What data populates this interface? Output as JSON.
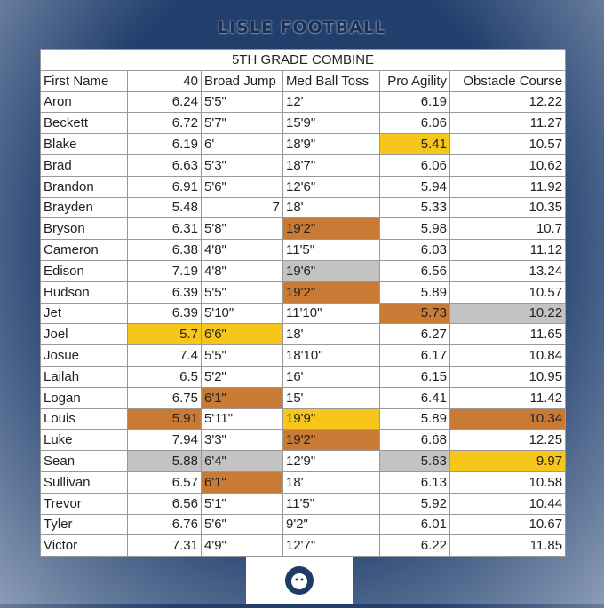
{
  "header": {
    "title": "LISLE FOOTBALL"
  },
  "table": {
    "title": "5TH GRADE COMBINE",
    "columns": [
      "First Name",
      "40",
      "Broad Jump",
      "Med Ball Toss",
      "Pro Agility",
      "Obstacle Course"
    ],
    "rows": [
      [
        "Aron",
        "6.24",
        "5'5\"",
        "12'",
        "6.19",
        "12.22"
      ],
      [
        "Beckett",
        "6.72",
        "5'7\"",
        "15'9\"",
        "6.06",
        "11.27"
      ],
      [
        "Blake",
        "6.19",
        "6'",
        "18'9\"",
        {
          "text": "5.41",
          "color": "#f7c61b"
        },
        "10.57"
      ],
      [
        "Brad",
        "6.63",
        "5'3\"",
        "18'7\"",
        "6.06",
        "10.62"
      ],
      [
        "Brandon",
        "6.91",
        "5'6\"",
        "12'6\"",
        "5.94",
        "11.92"
      ],
      [
        "Brayden",
        "5.48",
        "7",
        "18'",
        "5.33",
        "10.35"
      ],
      [
        "Bryson",
        "6.31",
        "5'8\"",
        {
          "text": "19'2\"",
          "color": "#c97a34"
        },
        "5.98",
        "10.7"
      ],
      [
        "Cameron",
        "6.38",
        "4'8\"",
        "11'5\"",
        "6.03",
        "11.12"
      ],
      [
        "Edison",
        "7.19",
        "4'8\"",
        {
          "text": "19'6\"",
          "color": "#c3c3c3"
        },
        "6.56",
        "13.24"
      ],
      [
        "Hudson",
        "6.39",
        "5'5\"",
        {
          "text": "19'2\"",
          "color": "#c97a34"
        },
        "5.89",
        "10.57"
      ],
      [
        "Jet",
        "6.39",
        "5'10\"",
        "11'10\"",
        {
          "text": "5.73",
          "color": "#c97a34"
        },
        {
          "text": "10.22",
          "color": "#c3c3c3"
        }
      ],
      [
        "Joel",
        {
          "text": "5.7",
          "color": "#f7c61b"
        },
        {
          "text": "6'6\"",
          "color": "#f7c61b"
        },
        "18'",
        "6.27",
        "11.65"
      ],
      [
        "Josue",
        "7.4",
        "5'5\"",
        "18'10\"",
        "6.17",
        "10.84"
      ],
      [
        "Lailah",
        "6.5",
        "5'2\"",
        "16'",
        "6.15",
        "10.95"
      ],
      [
        "Logan",
        "6.75",
        {
          "text": "6'1\"",
          "color": "#c97a34"
        },
        "15'",
        "6.41",
        "11.42"
      ],
      [
        "Louis",
        {
          "text": "5.91",
          "color": "#c97a34"
        },
        "5'11\"",
        {
          "text": "19'9\"",
          "color": "#f7c61b"
        },
        "5.89",
        {
          "text": "10.34",
          "color": "#c97a34"
        }
      ],
      [
        "Luke",
        "7.94",
        "3'3\"",
        {
          "text": "19'2\"",
          "color": "#c97a34"
        },
        "6.68",
        "12.25"
      ],
      [
        "Sean",
        {
          "text": "5.88",
          "color": "#c3c3c3"
        },
        {
          "text": "6'4\"",
          "color": "#c3c3c3"
        },
        "12'9\"",
        {
          "text": "5.63",
          "color": "#c3c3c3"
        },
        {
          "text": "9.97",
          "color": "#f7c61b"
        }
      ],
      [
        "Sullivan",
        "6.57",
        {
          "text": "6'1\"",
          "color": "#c97a34"
        },
        "18'",
        "6.13",
        "10.58"
      ],
      [
        "Trevor",
        "6.56",
        "5'1\"",
        "11'5\"",
        "5.92",
        "10.44"
      ],
      [
        "Tyler",
        "6.76",
        "5'6\"",
        "9'2\"",
        "6.01",
        "10.67"
      ],
      [
        "Victor",
        "7.31",
        "4'9\"",
        "12'7\"",
        "6.22",
        "11.85"
      ]
    ]
  }
}
